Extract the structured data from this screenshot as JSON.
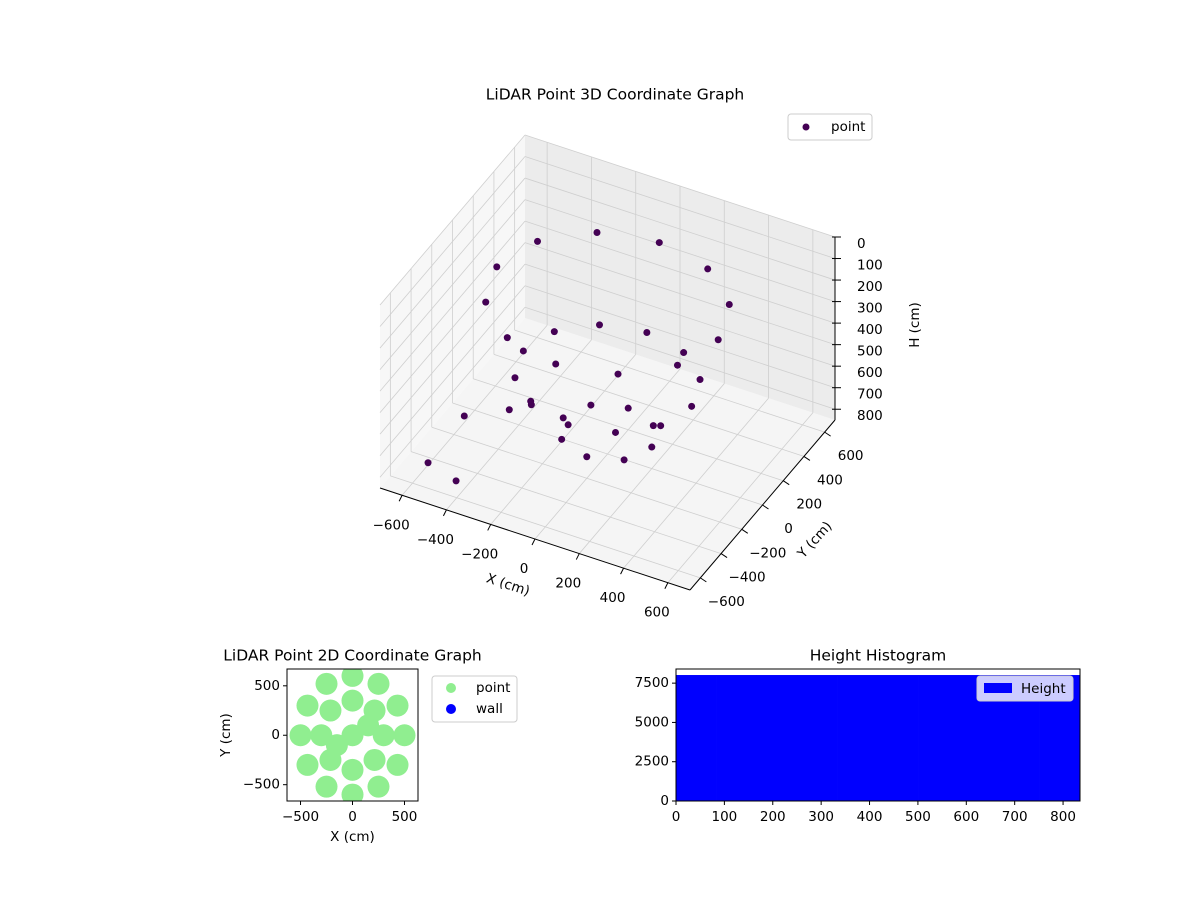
{
  "chart_data": [
    {
      "type": "scatter3d",
      "title": "LiDAR Point 3D Coordinate Graph",
      "xlabel": "X (cm)",
      "ylabel": "Y (cm)",
      "zlabel": "H (cm)",
      "xlim": [
        -700,
        700
      ],
      "ylim": [
        -700,
        700
      ],
      "zlim": [
        0,
        850
      ],
      "zinverted": true,
      "grid": true,
      "legend": "upper right",
      "xticks": [
        {
          "value": -600,
          "label": "−600"
        },
        {
          "value": -400,
          "label": "−400"
        },
        {
          "value": -200,
          "label": "−200"
        },
        0,
        200,
        400,
        600
      ],
      "yticks": [
        {
          "value": -600,
          "label": "−600"
        },
        {
          "value": -400,
          "label": "−400"
        },
        {
          "value": -200,
          "label": "−200"
        },
        0,
        200,
        400,
        600
      ],
      "zticks": [
        0,
        100,
        200,
        300,
        400,
        500,
        600,
        700,
        800
      ],
      "series": [
        {
          "name": "point",
          "color": "#440154",
          "x": [
            500,
            433,
            250,
            0,
            -250,
            -433,
            -500,
            -433,
            -250,
            0,
            250,
            433,
            380,
            329,
            190,
            0,
            -190,
            -329,
            -380,
            -329,
            -190,
            0,
            190,
            329,
            200,
            141,
            0,
            -141,
            -200,
            -141,
            0,
            141,
            -350,
            -300,
            -600,
            -450,
            -600
          ],
          "y": [
            0,
            250,
            433,
            500,
            433,
            250,
            0,
            -250,
            -433,
            -500,
            -433,
            -250,
            0,
            190,
            329,
            380,
            329,
            190,
            0,
            -190,
            -329,
            -380,
            -329,
            -190,
            0,
            141,
            200,
            141,
            0,
            -141,
            -200,
            -141,
            -200,
            -100,
            -450,
            -500,
            -100
          ],
          "z": [
            150,
            150,
            150,
            150,
            150,
            150,
            150,
            150,
            150,
            150,
            150,
            150,
            500,
            500,
            500,
            500,
            500,
            500,
            500,
            500,
            500,
            500,
            500,
            500,
            750,
            750,
            750,
            750,
            750,
            750,
            750,
            750,
            650,
            650,
            840,
            845,
            820
          ]
        }
      ]
    },
    {
      "type": "scatter",
      "title": "LiDAR Point 2D Coordinate Graph",
      "xlabel": "X (cm)",
      "ylabel": "Y (cm)",
      "xlim": [
        -630,
        630
      ],
      "ylim": [
        -665,
        670
      ],
      "legend": "outside right",
      "xticks": [
        {
          "value": -500,
          "label": "−500"
        },
        0,
        500
      ],
      "yticks": [
        {
          "value": -500,
          "label": "−500"
        },
        0,
        500
      ],
      "series": [
        {
          "name": "point",
          "color": "#90ee90",
          "x": [
            500,
            433,
            250,
            0,
            -250,
            -433,
            -500,
            -433,
            -250,
            0,
            250,
            433,
            300,
            212,
            0,
            -212,
            -300,
            -212,
            0,
            212,
            0,
            150,
            -150
          ],
          "y": [
            0,
            300,
            520,
            600,
            520,
            300,
            0,
            -300,
            -520,
            -600,
            -520,
            -300,
            0,
            250,
            350,
            250,
            0,
            -250,
            -350,
            -250,
            0,
            100,
            -100
          ]
        },
        {
          "name": "wall",
          "color": "#0000ff",
          "x": [],
          "y": []
        }
      ]
    },
    {
      "type": "hist",
      "title": "Height Histogram",
      "xlim": [
        0,
        835
      ],
      "ylim": [
        0,
        8400
      ],
      "legend": "upper right",
      "xticks": [
        0,
        100,
        200,
        300,
        400,
        500,
        600,
        700,
        800
      ],
      "yticks": [
        0,
        2500,
        5000,
        7500
      ],
      "series": [
        {
          "name": "Height",
          "color": "#0000ff",
          "bins": [
            0,
            83.5,
            167,
            250.5,
            334,
            417.5,
            501,
            584.5,
            668,
            751.5,
            835
          ],
          "values": [
            8000,
            8000,
            8000,
            8000,
            8000,
            8000,
            8000,
            8000,
            8000,
            8000
          ]
        }
      ]
    }
  ]
}
